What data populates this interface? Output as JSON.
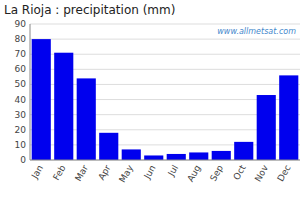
{
  "chart_data": {
    "type": "bar",
    "title": "La Rioja : precipitation (mm)",
    "categories": [
      "Jan",
      "Feb",
      "Mar",
      "Apr",
      "May",
      "Jun",
      "Jul",
      "Aug",
      "Sep",
      "Oct",
      "Nov",
      "Dec"
    ],
    "values": [
      80,
      71,
      54,
      18,
      7,
      3,
      4,
      5,
      6,
      12,
      43,
      56
    ],
    "color": "#0000ee",
    "ylim": [
      0,
      90
    ],
    "yticks": [
      0,
      10,
      20,
      30,
      40,
      50,
      60,
      70,
      80,
      90
    ],
    "grid": true,
    "annotation": "www.allmetsat.com"
  }
}
